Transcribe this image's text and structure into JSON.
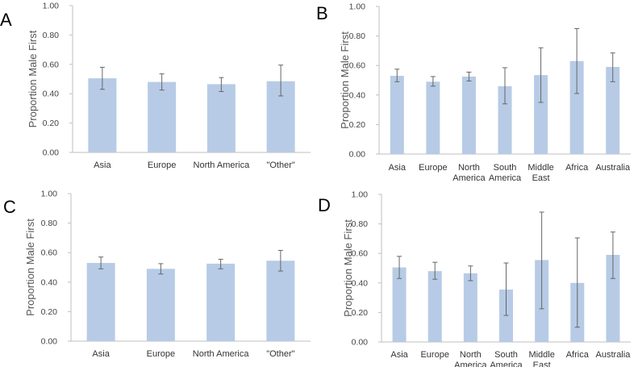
{
  "chart_data": [
    {
      "type": "bar",
      "panel": "A",
      "ylabel": "Proportion Male First",
      "ylim": [
        0,
        1
      ],
      "yticks": [
        "0.00",
        "0.20",
        "0.40",
        "0.60",
        "0.80",
        "1.00"
      ],
      "categories": [
        [
          "Asia"
        ],
        [
          "Europe"
        ],
        [
          "North America"
        ],
        [
          "\"Other\""
        ]
      ],
      "values": [
        0.505,
        0.48,
        0.465,
        0.485
      ],
      "errors": [
        [
          0.43,
          0.58
        ],
        [
          0.425,
          0.535
        ],
        [
          0.415,
          0.51
        ],
        [
          0.385,
          0.595
        ]
      ]
    },
    {
      "type": "bar",
      "panel": "B",
      "ylabel": "Proportion Male First",
      "ylim": [
        0,
        1
      ],
      "yticks": [
        "0.00",
        "0.20",
        "0.40",
        "0.60",
        "0.80",
        "1.00"
      ],
      "categories": [
        [
          "Asia"
        ],
        [
          "Europe"
        ],
        [
          "North",
          "America"
        ],
        [
          "South",
          "America"
        ],
        [
          "Middle",
          "East"
        ],
        [
          "Africa"
        ],
        [
          "Australia"
        ]
      ],
      "values": [
        0.53,
        0.49,
        0.525,
        0.46,
        0.535,
        0.63,
        0.59
      ],
      "errors": [
        [
          0.49,
          0.575
        ],
        [
          0.46,
          0.525
        ],
        [
          0.495,
          0.555
        ],
        [
          0.34,
          0.585
        ],
        [
          0.35,
          0.72
        ],
        [
          0.41,
          0.85
        ],
        [
          0.49,
          0.685
        ]
      ]
    },
    {
      "type": "bar",
      "panel": "C",
      "ylabel": "Proportion Male First",
      "ylim": [
        0,
        1
      ],
      "yticks": [
        "0.00",
        "0.20",
        "0.40",
        "0.60",
        "0.80",
        "1.00"
      ],
      "categories": [
        [
          "Asia"
        ],
        [
          "Europe"
        ],
        [
          "North America"
        ],
        [
          "\"Other\""
        ]
      ],
      "values": [
        0.53,
        0.49,
        0.525,
        0.545
      ],
      "errors": [
        [
          0.49,
          0.57
        ],
        [
          0.455,
          0.525
        ],
        [
          0.49,
          0.555
        ],
        [
          0.475,
          0.615
        ]
      ]
    },
    {
      "type": "bar",
      "panel": "D",
      "ylabel": "Proportion Male First",
      "ylim": [
        0,
        1
      ],
      "yticks": [
        "0.00",
        "0.20",
        "0.40",
        "0.60",
        "0.80",
        "1.00"
      ],
      "categories": [
        [
          "Asia"
        ],
        [
          "Europe"
        ],
        [
          "North",
          "America"
        ],
        [
          "South",
          "America"
        ],
        [
          "Middle",
          "East"
        ],
        [
          "Africa"
        ],
        [
          "Australia"
        ]
      ],
      "values": [
        0.505,
        0.48,
        0.465,
        0.355,
        0.555,
        0.4,
        0.59
      ],
      "errors": [
        [
          0.43,
          0.58
        ],
        [
          0.425,
          0.54
        ],
        [
          0.415,
          0.515
        ],
        [
          0.18,
          0.535
        ],
        [
          0.225,
          0.88
        ],
        [
          0.1,
          0.705
        ],
        [
          0.43,
          0.745
        ]
      ]
    }
  ]
}
